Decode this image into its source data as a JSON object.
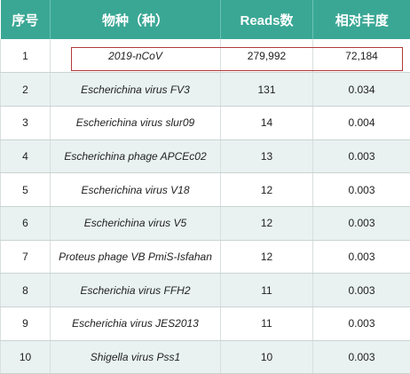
{
  "table": {
    "headers": [
      "序号",
      "物种（种）",
      "Reads数",
      "相对丰度"
    ],
    "rows": [
      {
        "no": "1",
        "species": "2019-nCoV",
        "reads": "279,992",
        "abundance": "72,184"
      },
      {
        "no": "2",
        "species": "Escherichina virus FV3",
        "reads": "131",
        "abundance": "0.034"
      },
      {
        "no": "3",
        "species": "Escherichina virus slur09",
        "reads": "14",
        "abundance": "0.004"
      },
      {
        "no": "4",
        "species": "Escherichina phage APCEc02",
        "reads": "13",
        "abundance": "0.003"
      },
      {
        "no": "5",
        "species": "Escherichina virus V18",
        "reads": "12",
        "abundance": "0.003"
      },
      {
        "no": "6",
        "species": "Escherichina virus V5",
        "reads": "12",
        "abundance": "0.003"
      },
      {
        "no": "7",
        "species": "Proteus phage VB PmiS-Isfahan",
        "reads": "12",
        "abundance": "0.003"
      },
      {
        "no": "8",
        "species": "Escherichia virus FFH2",
        "reads": "11",
        "abundance": "0.003"
      },
      {
        "no": "9",
        "species": "Escherichia virus JES2013",
        "reads": "11",
        "abundance": "0.003"
      },
      {
        "no": "10",
        "species": "Shigella virus Pss1",
        "reads": "10",
        "abundance": "0.003"
      }
    ]
  },
  "colors": {
    "header_bg": "#3aa795",
    "stripe_bg": "#e9f2f1",
    "highlight_border": "#b33a3a"
  }
}
